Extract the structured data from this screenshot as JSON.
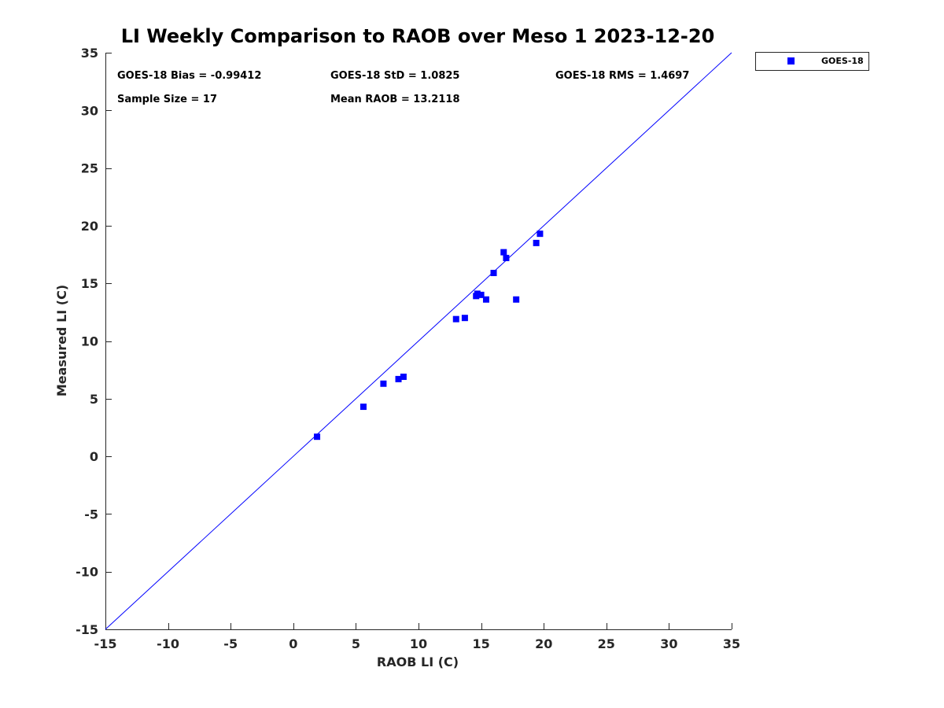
{
  "chart_data": {
    "type": "scatter",
    "title": "LI Weekly Comparison to RAOB over Meso 1 2023-12-20",
    "xlabel": "RAOB LI (C)",
    "ylabel": "Measured LI (C)",
    "xlim": [
      -15,
      35
    ],
    "ylim": [
      -15,
      35
    ],
    "xticks": [
      -15,
      -10,
      -5,
      0,
      5,
      10,
      15,
      20,
      25,
      30,
      35
    ],
    "yticks": [
      -15,
      -10,
      -5,
      0,
      5,
      10,
      15,
      20,
      25,
      30,
      35
    ],
    "grid": false,
    "reference_line": "y = x",
    "legend_position": "top-right outside",
    "series": [
      {
        "name": "GOES-18",
        "color": "#0000ff",
        "marker": "square",
        "points": [
          [
            1.9,
            1.7
          ],
          [
            5.6,
            4.3
          ],
          [
            7.2,
            6.3
          ],
          [
            8.4,
            6.7
          ],
          [
            8.8,
            6.9
          ],
          [
            13.0,
            11.9
          ],
          [
            13.7,
            12.0
          ],
          [
            14.6,
            13.9
          ],
          [
            14.7,
            14.1
          ],
          [
            15.0,
            14.0
          ],
          [
            15.4,
            13.6
          ],
          [
            16.0,
            15.9
          ],
          [
            16.8,
            17.7
          ],
          [
            17.0,
            17.2
          ],
          [
            17.8,
            13.6
          ],
          [
            19.4,
            18.5
          ],
          [
            19.7,
            19.3
          ]
        ]
      }
    ],
    "annotations": {
      "bias": "GOES-18 Bias = -0.99412",
      "std": "GOES-18 StD = 1.0825",
      "rms": "GOES-18 RMS = 1.4697",
      "sample_size": "Sample Size = 17",
      "mean_raob": "Mean RAOB = 13.2118"
    },
    "legend": [
      "GOES-18"
    ],
    "ref_line_color": "#0000ff",
    "axis_color": "#262626"
  }
}
